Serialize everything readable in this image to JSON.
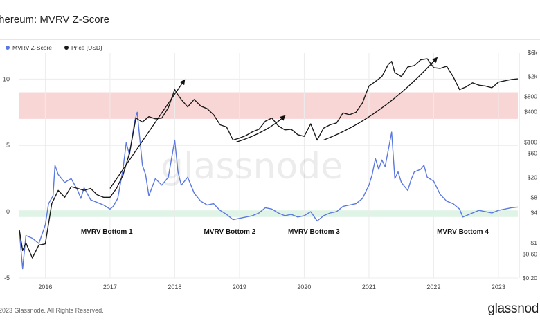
{
  "header": {
    "title": "thereum: MVRV Z-Score"
  },
  "footer": {
    "copyright": "2023 Glassnode. All Rights Reserved.",
    "brand": "glassnod"
  },
  "watermark": "glassnode",
  "colors": {
    "zscore": "#5b78e0",
    "price": "#1a1a1a",
    "red_band": "#f9d6d6",
    "green_band": "#dff3e6"
  },
  "chart_data": {
    "type": "line",
    "legend": [
      "MVRV Z-Score",
      "Price [USD]"
    ],
    "legend_position": "top-left",
    "grid": true,
    "x_ticks": [
      "2016",
      "2017",
      "2018",
      "2019",
      "2020",
      "2021",
      "2022",
      "2023"
    ],
    "x_range": [
      2015.6,
      2023.3
    ],
    "left_axis": {
      "ticks": [
        10,
        5,
        0,
        -5
      ],
      "range": [
        -5,
        12
      ]
    },
    "right_axis": {
      "scale": "log",
      "ticks": [
        "$6k",
        "$2k",
        "$800",
        "$400",
        "$100",
        "$60",
        "$20",
        "$8",
        "$4",
        "$1",
        "$0.60",
        "$0.20"
      ],
      "range": [
        0.2,
        6000
      ]
    },
    "bands": [
      {
        "name": "red",
        "from": 7,
        "to": 9
      },
      {
        "name": "green",
        "from": -0.4,
        "to": 0.1
      }
    ],
    "annotations": [
      {
        "text": "MVRV Bottom 1",
        "x": 2016.95
      },
      {
        "text": "MVRV Bottom 2",
        "x": 2018.85
      },
      {
        "text": "MVRV Bottom 3",
        "x": 2020.15
      },
      {
        "text": "MVRV Bottom 4",
        "x": 2022.45
      }
    ],
    "series": [
      {
        "name": "MVRV Z-Score",
        "axis": "left",
        "points": [
          [
            2015.6,
            -1.5
          ],
          [
            2015.65,
            -4.3
          ],
          [
            2015.7,
            -1.8
          ],
          [
            2015.8,
            -2.0
          ],
          [
            2015.9,
            -2.4
          ],
          [
            2016.0,
            -1.0
          ],
          [
            2016.05,
            0.6
          ],
          [
            2016.12,
            1.2
          ],
          [
            2016.15,
            3.5
          ],
          [
            2016.2,
            2.8
          ],
          [
            2016.3,
            2.2
          ],
          [
            2016.4,
            2.5
          ],
          [
            2016.5,
            1.6
          ],
          [
            2016.55,
            1.0
          ],
          [
            2016.6,
            1.8
          ],
          [
            2016.7,
            0.9
          ],
          [
            2016.8,
            0.7
          ],
          [
            2016.9,
            0.5
          ],
          [
            2017.0,
            0.2
          ],
          [
            2017.05,
            0.4
          ],
          [
            2017.12,
            1.0
          ],
          [
            2017.2,
            3.2
          ],
          [
            2017.25,
            5.2
          ],
          [
            2017.3,
            4.3
          ],
          [
            2017.38,
            6.8
          ],
          [
            2017.42,
            7.5
          ],
          [
            2017.5,
            3.5
          ],
          [
            2017.55,
            2.8
          ],
          [
            2017.6,
            1.2
          ],
          [
            2017.7,
            2.5
          ],
          [
            2017.8,
            2.0
          ],
          [
            2017.9,
            2.6
          ],
          [
            2018.0,
            5.4
          ],
          [
            2018.05,
            3.0
          ],
          [
            2018.1,
            2.0
          ],
          [
            2018.2,
            2.6
          ],
          [
            2018.3,
            1.4
          ],
          [
            2018.4,
            0.8
          ],
          [
            2018.5,
            0.5
          ],
          [
            2018.6,
            0.6
          ],
          [
            2018.7,
            0.1
          ],
          [
            2018.8,
            -0.2
          ],
          [
            2018.9,
            -0.6
          ],
          [
            2019.0,
            -0.5
          ],
          [
            2019.1,
            -0.4
          ],
          [
            2019.2,
            -0.3
          ],
          [
            2019.3,
            -0.1
          ],
          [
            2019.4,
            0.3
          ],
          [
            2019.5,
            0.2
          ],
          [
            2019.6,
            -0.1
          ],
          [
            2019.7,
            -0.3
          ],
          [
            2019.8,
            -0.2
          ],
          [
            2019.9,
            -0.4
          ],
          [
            2020.0,
            -0.3
          ],
          [
            2020.1,
            0.0
          ],
          [
            2020.2,
            -0.7
          ],
          [
            2020.3,
            -0.3
          ],
          [
            2020.4,
            -0.1
          ],
          [
            2020.5,
            0.0
          ],
          [
            2020.6,
            0.4
          ],
          [
            2020.7,
            0.5
          ],
          [
            2020.8,
            0.6
          ],
          [
            2020.9,
            1.0
          ],
          [
            2021.0,
            2.0
          ],
          [
            2021.05,
            2.8
          ],
          [
            2021.1,
            4.0
          ],
          [
            2021.15,
            3.2
          ],
          [
            2021.2,
            3.9
          ],
          [
            2021.25,
            3.4
          ],
          [
            2021.3,
            4.7
          ],
          [
            2021.35,
            6.0
          ],
          [
            2021.4,
            2.5
          ],
          [
            2021.45,
            3.0
          ],
          [
            2021.5,
            2.2
          ],
          [
            2021.6,
            1.6
          ],
          [
            2021.65,
            2.4
          ],
          [
            2021.7,
            3.0
          ],
          [
            2021.8,
            3.2
          ],
          [
            2021.85,
            3.5
          ],
          [
            2021.9,
            2.6
          ],
          [
            2022.0,
            2.3
          ],
          [
            2022.1,
            1.3
          ],
          [
            2022.2,
            0.8
          ],
          [
            2022.3,
            0.6
          ],
          [
            2022.4,
            0.2
          ],
          [
            2022.45,
            -0.4
          ],
          [
            2022.5,
            -0.3
          ],
          [
            2022.6,
            -0.1
          ],
          [
            2022.7,
            0.1
          ],
          [
            2022.8,
            0.0
          ],
          [
            2022.9,
            -0.1
          ],
          [
            2023.0,
            0.1
          ],
          [
            2023.1,
            0.2
          ],
          [
            2023.2,
            0.3
          ],
          [
            2023.3,
            0.35
          ]
        ]
      },
      {
        "name": "Price [USD]",
        "axis": "right",
        "points": [
          [
            2015.6,
            1.8
          ],
          [
            2015.65,
            0.7
          ],
          [
            2015.7,
            1.0
          ],
          [
            2015.8,
            0.5
          ],
          [
            2015.9,
            0.9
          ],
          [
            2016.0,
            0.95
          ],
          [
            2016.1,
            6
          ],
          [
            2016.2,
            11
          ],
          [
            2016.3,
            8
          ],
          [
            2016.4,
            13
          ],
          [
            2016.5,
            12
          ],
          [
            2016.6,
            11
          ],
          [
            2016.7,
            12
          ],
          [
            2016.8,
            9
          ],
          [
            2016.9,
            8
          ],
          [
            2017.0,
            8
          ],
          [
            2017.1,
            12
          ],
          [
            2017.2,
            22
          ],
          [
            2017.3,
            60
          ],
          [
            2017.4,
            300
          ],
          [
            2017.5,
            250
          ],
          [
            2017.6,
            320
          ],
          [
            2017.7,
            290
          ],
          [
            2017.8,
            300
          ],
          [
            2017.9,
            480
          ],
          [
            2018.0,
            1100
          ],
          [
            2018.05,
            860
          ],
          [
            2018.1,
            700
          ],
          [
            2018.2,
            500
          ],
          [
            2018.3,
            700
          ],
          [
            2018.4,
            520
          ],
          [
            2018.5,
            460
          ],
          [
            2018.6,
            350
          ],
          [
            2018.7,
            220
          ],
          [
            2018.8,
            200
          ],
          [
            2018.9,
            110
          ],
          [
            2019.0,
            120
          ],
          [
            2019.1,
            135
          ],
          [
            2019.2,
            160
          ],
          [
            2019.3,
            180
          ],
          [
            2019.4,
            260
          ],
          [
            2019.5,
            300
          ],
          [
            2019.6,
            210
          ],
          [
            2019.7,
            175
          ],
          [
            2019.8,
            180
          ],
          [
            2019.9,
            140
          ],
          [
            2020.0,
            130
          ],
          [
            2020.1,
            230
          ],
          [
            2020.2,
            110
          ],
          [
            2020.3,
            190
          ],
          [
            2020.4,
            220
          ],
          [
            2020.5,
            240
          ],
          [
            2020.6,
            380
          ],
          [
            2020.7,
            350
          ],
          [
            2020.8,
            390
          ],
          [
            2020.9,
            600
          ],
          [
            2021.0,
            1300
          ],
          [
            2021.1,
            1600
          ],
          [
            2021.2,
            2000
          ],
          [
            2021.3,
            3500
          ],
          [
            2021.35,
            4000
          ],
          [
            2021.4,
            2400
          ],
          [
            2021.5,
            2000
          ],
          [
            2021.6,
            3100
          ],
          [
            2021.7,
            3300
          ],
          [
            2021.8,
            4300
          ],
          [
            2021.9,
            4500
          ],
          [
            2022.0,
            3000
          ],
          [
            2022.1,
            2900
          ],
          [
            2022.2,
            3200
          ],
          [
            2022.3,
            2000
          ],
          [
            2022.4,
            1100
          ],
          [
            2022.5,
            1250
          ],
          [
            2022.6,
            1500
          ],
          [
            2022.7,
            1350
          ],
          [
            2022.8,
            1300
          ],
          [
            2022.9,
            1200
          ],
          [
            2023.0,
            1550
          ],
          [
            2023.1,
            1650
          ],
          [
            2023.2,
            1750
          ],
          [
            2023.3,
            1800
          ]
        ]
      }
    ],
    "arrows": [
      {
        "axis": "right",
        "from": [
          2017.0,
          12
        ],
        "via": [
          2017.7,
          250
        ],
        "to": [
          2018.15,
          1700
        ]
      },
      {
        "axis": "right",
        "from": [
          2018.95,
          100
        ],
        "via": [
          2019.4,
          150
        ],
        "to": [
          2019.7,
          330
        ]
      },
      {
        "axis": "right",
        "from": [
          2020.3,
          110
        ],
        "via": [
          2021.2,
          300
        ],
        "to": [
          2022.05,
          4700
        ]
      }
    ]
  }
}
